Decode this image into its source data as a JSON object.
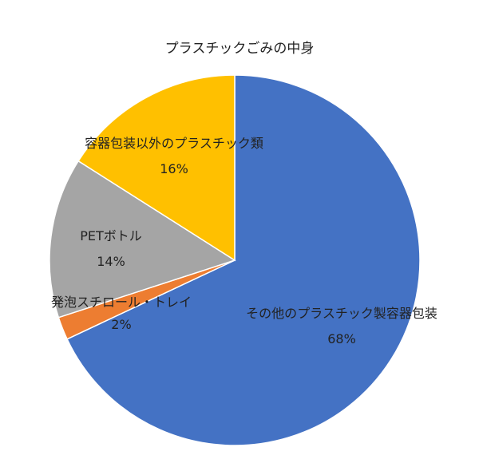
{
  "chart_data": {
    "type": "pie",
    "title": "プラスチックごみの中身",
    "slices": [
      {
        "label": "その他のプラスチック製容器包装",
        "value": 68,
        "display": "68%",
        "color": "#4472C4"
      },
      {
        "label": "発泡スチロール・トレイ",
        "value": 2,
        "display": "2%",
        "color": "#ED7D31"
      },
      {
        "label": "PETボトル",
        "value": 14,
        "display": "14%",
        "color": "#A5A5A5"
      },
      {
        "label": "容器包装以外のプラスチック類",
        "value": 16,
        "display": "16%",
        "color": "#FFC000"
      }
    ]
  }
}
